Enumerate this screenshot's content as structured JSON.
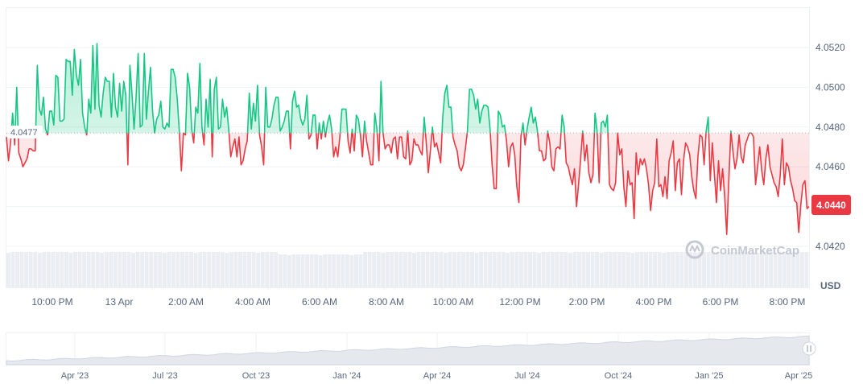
{
  "chart_data": {
    "type": "line",
    "unit": "USD",
    "baseline": {
      "value": 4.0477,
      "label": "4.0477"
    },
    "current_price": {
      "value": 4.044,
      "label": "4.0440"
    },
    "ylim": [
      4.041,
      4.054
    ],
    "y_ticks": [
      "4.0520",
      "4.0500",
      "4.0480",
      "4.0460",
      "4.0440",
      "4.0420"
    ],
    "x_ticks": [
      "10:00 PM",
      "13 Apr",
      "2:00 AM",
      "4:00 AM",
      "6:00 AM",
      "8:00 AM",
      "10:00 AM",
      "12:00 PM",
      "2:00 PM",
      "4:00 PM",
      "6:00 PM",
      "8:00 PM"
    ],
    "colors": {
      "up": "#16c784",
      "down": "#ea3943",
      "grid": "#eff2f5",
      "baseline": "#a6b0c3",
      "volume": "#eaedf1"
    },
    "series": [
      {
        "values": [
          4.0475,
          4.0463,
          4.0472,
          4.0487,
          4.0471,
          4.05,
          4.0467,
          4.0464,
          4.046,
          4.0462,
          4.0464,
          4.0469,
          4.0469,
          4.0468,
          4.0468,
          4.0511,
          4.0489,
          4.0486,
          4.0495,
          4.0479,
          4.0476,
          4.0488,
          4.0488,
          4.0481,
          4.0506,
          4.0505,
          4.0483,
          4.0483,
          4.0484,
          4.0514,
          4.0513,
          4.0513,
          4.0496,
          4.0519,
          4.0506,
          4.0501,
          4.0514,
          4.0487,
          4.048,
          4.0476,
          4.0494,
          4.0487,
          4.0521,
          4.0489,
          4.0522,
          4.0491,
          4.0485,
          4.0497,
          4.0505,
          4.0503,
          4.0503,
          4.0485,
          4.0507,
          4.049,
          4.0485,
          4.0502,
          4.0488,
          4.0503,
          4.0496,
          4.0461,
          4.0511,
          4.0497,
          4.0479,
          4.0495,
          4.0517,
          4.048,
          4.0481,
          4.0517,
          4.0484,
          4.0498,
          4.051,
          4.0488,
          4.0477,
          4.0484,
          4.0486,
          4.0493,
          4.048,
          4.0479,
          4.0482,
          4.048,
          4.0509,
          4.0509,
          4.0505,
          4.0494,
          4.0478,
          4.0458,
          4.0477,
          4.0476,
          4.0507,
          4.05,
          4.0479,
          4.0472,
          4.049,
          4.0487,
          4.0512,
          4.048,
          4.0471,
          4.0494,
          4.048,
          4.0504,
          4.0465,
          4.0499,
          4.0505,
          4.0479,
          4.048,
          4.0494,
          4.0485,
          4.049,
          4.0479,
          4.0465,
          4.047,
          4.0474,
          4.0465,
          4.0475,
          4.0461,
          4.0463,
          4.0469,
          4.0473,
          4.0497,
          4.0479,
          4.0492,
          4.0483,
          4.0501,
          4.0476,
          4.047,
          4.0461,
          4.05,
          4.048,
          4.048,
          4.0484,
          4.0491,
          4.0495,
          4.0495,
          4.0478,
          4.048,
          4.0483,
          4.0488,
          4.0488,
          4.0469,
          4.0493,
          4.0498,
          4.049,
          4.0491,
          4.0484,
          4.0481,
          4.0484,
          4.0496,
          4.0474,
          4.0476,
          4.0486,
          4.0486,
          4.0469,
          4.0482,
          4.0474,
          4.0483,
          4.0475,
          4.0482,
          4.0486,
          4.0479,
          4.0465,
          4.047,
          4.0465,
          4.0475,
          4.0489,
          4.0489,
          4.0489,
          4.0473,
          4.0467,
          4.0479,
          4.0468,
          4.0486,
          4.0484,
          4.0476,
          4.0465,
          4.0483,
          4.0473,
          4.0467,
          4.0461,
          4.0461,
          4.0487,
          4.0479,
          4.0463,
          4.0503,
          4.0477,
          4.0469,
          4.0471,
          4.0471,
          4.0467,
          4.0474,
          4.0475,
          4.0464,
          4.0475,
          4.0475,
          4.0465,
          4.0464,
          4.0478,
          4.0461,
          4.0463,
          4.0474,
          4.0471,
          4.0471,
          4.0468,
          4.0466,
          4.0485,
          4.0472,
          4.0457,
          4.0468,
          4.048,
          4.047,
          4.0472,
          4.0467,
          4.0462,
          4.0485,
          4.0497,
          4.0501,
          4.049,
          4.049,
          4.0475,
          4.0471,
          4.0468,
          4.046,
          4.0458,
          4.0461,
          4.0469,
          4.0478,
          4.0499,
          4.0499,
          4.0496,
          4.0489,
          4.0494,
          4.0482,
          4.0488,
          4.0491,
          4.0491,
          4.049,
          4.0479,
          4.0461,
          4.0449,
          4.0449,
          4.0488,
          4.0486,
          4.048,
          4.0481,
          4.0473,
          4.046,
          4.047,
          4.0472,
          4.0466,
          4.045,
          4.0442,
          4.0475,
          4.0482,
          4.0471,
          4.0479,
          4.0485,
          4.049,
          4.0482,
          4.0485,
          4.0478,
          4.0468,
          4.0468,
          4.0463,
          4.0464,
          4.0478,
          4.0472,
          4.046,
          4.0458,
          4.0469,
          4.047,
          4.0469,
          4.0486,
          4.048,
          4.0462,
          4.046,
          4.0455,
          4.0451,
          4.0459,
          4.044,
          4.0451,
          4.0464,
          4.0478,
          4.0463,
          4.0471,
          4.0457,
          4.0452,
          4.0456,
          4.0487,
          4.0478,
          4.0452,
          4.0482,
          4.0483,
          4.048,
          4.0486,
          4.0451,
          4.0449,
          4.0448,
          4.0452,
          4.0477,
          4.0466,
          4.0469,
          4.045,
          4.044,
          4.0458,
          4.0451,
          4.0452,
          4.0434,
          4.0467,
          4.0456,
          4.0464,
          4.0461,
          4.0464,
          4.0459,
          4.0451,
          4.0438,
          4.0448,
          4.0452,
          4.0474,
          4.045,
          4.0451,
          4.0445,
          4.0455,
          4.0444,
          4.0463,
          4.0467,
          4.0473,
          4.0448,
          4.0462,
          4.0464,
          4.0446,
          4.0463,
          4.0472,
          4.047,
          4.0466,
          4.0455,
          4.0448,
          4.0444,
          4.0465,
          4.0476,
          4.0475,
          4.0461,
          4.0478,
          4.0485,
          4.0453,
          4.0472,
          4.0456,
          4.0442,
          4.0463,
          4.0448,
          4.0459,
          4.0445,
          4.0426,
          4.0453,
          4.0478,
          4.0468,
          4.0459,
          4.0464,
          4.0476,
          4.0465,
          4.0462,
          4.0471,
          4.0474,
          4.0477,
          4.0477,
          4.0475,
          4.0451,
          4.046,
          4.047,
          4.0458,
          4.0451,
          4.0464,
          4.0471,
          4.046,
          4.0456,
          4.0452,
          4.045,
          4.0445,
          4.0456,
          4.0474,
          4.0451,
          4.0462,
          4.046,
          4.0453,
          4.0449,
          4.0443,
          4.0442,
          4.0427,
          4.0441,
          4.0451,
          4.0453,
          4.0439,
          4.044
        ]
      }
    ],
    "navigator": {
      "x_ticks": [
        "Apr '23",
        "Jul '23",
        "Oct '23",
        "Jan '24",
        "Apr '24",
        "Jul '24",
        "Oct '24",
        "Jan '25",
        "Apr '25"
      ]
    },
    "watermark": "CoinMarketCap",
    "icons": {
      "watermark": "coinmarketcap-logo-icon",
      "handle": "navigator-handle-icon"
    }
  }
}
